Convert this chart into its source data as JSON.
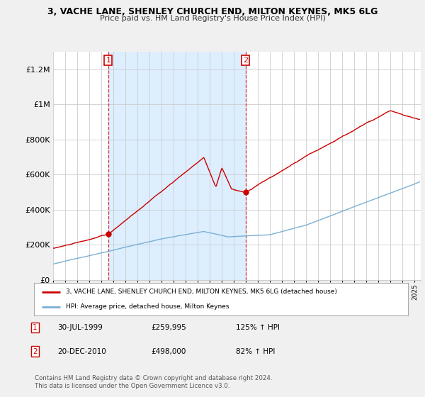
{
  "title": "3, VACHE LANE, SHENLEY CHURCH END, MILTON KEYNES, MK5 6LG",
  "subtitle": "Price paid vs. HM Land Registry's House Price Index (HPI)",
  "bg_color": "#f0f0f0",
  "plot_bg_color": "#ffffff",
  "shade_color": "#ddeeff",
  "sale1_date": 1999.58,
  "sale1_price": 259995,
  "sale2_date": 2010.97,
  "sale2_price": 498000,
  "legend_label_red": "3, VACHE LANE, SHENLEY CHURCH END, MILTON KEYNES, MK5 6LG (detached house)",
  "legend_label_blue": "HPI: Average price, detached house, Milton Keynes",
  "footer": "Contains HM Land Registry data © Crown copyright and database right 2024.\nThis data is licensed under the Open Government Licence v3.0.",
  "ylim_max": 1300000,
  "xlim_start": 1995.0,
  "xlim_end": 2025.5,
  "red_color": "#cc0000",
  "blue_color": "#7ab0d4",
  "grid_color": "#cccccc",
  "yticks": [
    0,
    200000,
    400000,
    600000,
    800000,
    1000000,
    1200000
  ],
  "ytick_labels": [
    "£0",
    "£200K",
    "£400K",
    "£600K",
    "£800K",
    "£1M",
    "£1.2M"
  ],
  "sale1_label_date": "30-JUL-1999",
  "sale1_label_price": "£259,995",
  "sale1_label_hpi": "125% ↑ HPI",
  "sale2_label_date": "20-DEC-2010",
  "sale2_label_price": "£498,000",
  "sale2_label_hpi": "82% ↑ HPI"
}
